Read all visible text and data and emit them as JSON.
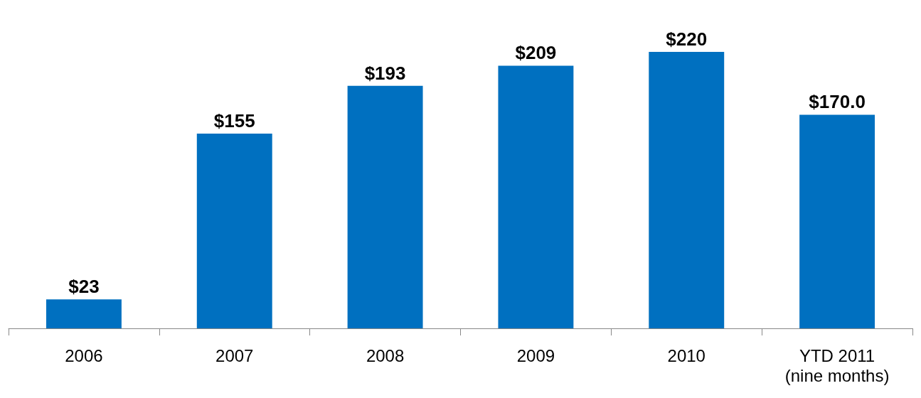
{
  "chart_data": {
    "type": "bar",
    "categories": [
      "2006",
      "2007",
      "2008",
      "2009",
      "2010",
      "YTD 2011\n(nine months)"
    ],
    "values": [
      23,
      155,
      193,
      209,
      220,
      170.0
    ],
    "value_labels": [
      "$23",
      "$155",
      "$193",
      "$209",
      "$220",
      "$170.0"
    ],
    "color": "#0070c0"
  }
}
